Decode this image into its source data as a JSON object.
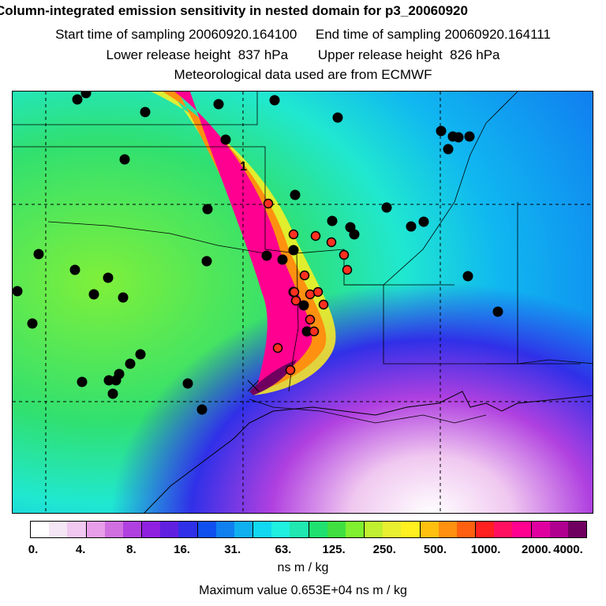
{
  "header": {
    "title": "Column-integrated emission sensitivity in nested domain for p3_20060920",
    "sampling_line": "Start time of sampling 20060920.164100     End time of sampling 20060920.164111",
    "release_line": "Lower release height  837 hPa        Upper release height  826 hPa",
    "met_line": "Meteorological data used are from ECMWF"
  },
  "map": {
    "background_gradient_note": "green-cyan-blue field",
    "plume_label": "1"
  },
  "legend": {
    "colors": [
      "#ffffff",
      "#f4e6f4",
      "#f0c8f0",
      "#e89ee8",
      "#d070e0",
      "#b040e0",
      "#9020e0",
      "#6020e0",
      "#3030e8",
      "#1050f0",
      "#1080f0",
      "#10b0f0",
      "#10d8f0",
      "#20f0e0",
      "#20e8b0",
      "#20e070",
      "#40e040",
      "#80f030",
      "#c0f030",
      "#e8f030",
      "#fff020",
      "#ffc010",
      "#ff9010",
      "#ff6010",
      "#ff2020",
      "#ff1060",
      "#ff0090",
      "#e000a0",
      "#b00090",
      "#700060"
    ],
    "ticks": [
      "0.",
      "4.",
      "8.",
      "16.",
      "31.",
      "63.",
      "125.",
      "250.",
      "500.",
      "1000.",
      "2000.",
      "4000."
    ],
    "units": "ns m / kg"
  },
  "footer": {
    "max_value": "Maximum value  0.653E+04 ns m / kg"
  }
}
